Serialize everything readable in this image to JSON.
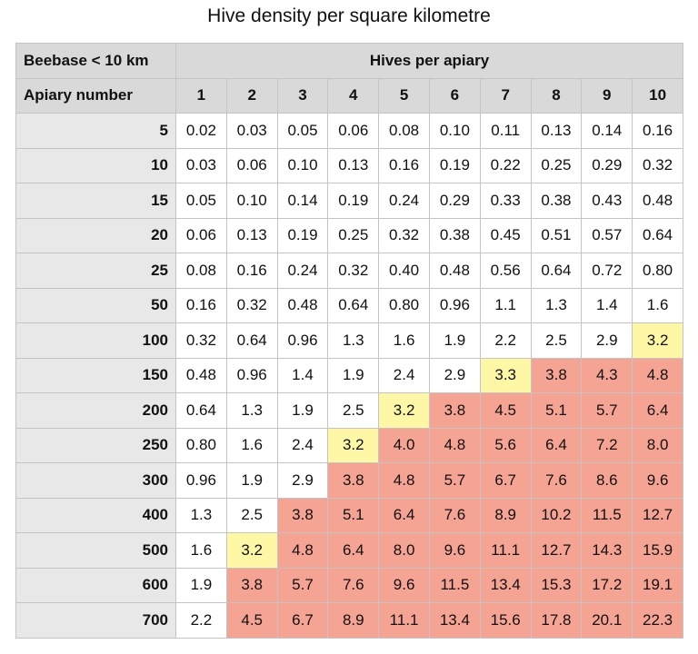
{
  "title": "Hive density per square kilometre",
  "table": {
    "corner_top": "Beebase < 10 km",
    "group_header": "Hives per apiary",
    "corner_bottom": "Apiary number",
    "columns": [
      "1",
      "2",
      "3",
      "4",
      "5",
      "6",
      "7",
      "8",
      "9",
      "10"
    ],
    "header_color": "#d9d9d9",
    "label_color": "#e8e8e8",
    "border_color": "#c4c4c4",
    "rows": [
      {
        "label": "5",
        "cells": [
          "0.02",
          "0.03",
          "0.05",
          "0.06",
          "0.08",
          "0.10",
          "0.11",
          "0.13",
          "0.14",
          "0.16"
        ],
        "fills": [
          "#ffffff",
          "#ffffff",
          "#ffffff",
          "#ffffff",
          "#ffffff",
          "#ffffff",
          "#ffffff",
          "#ffffff",
          "#ffffff",
          "#ffffff"
        ]
      },
      {
        "label": "10",
        "cells": [
          "0.03",
          "0.06",
          "0.10",
          "0.13",
          "0.16",
          "0.19",
          "0.22",
          "0.25",
          "0.29",
          "0.32"
        ],
        "fills": [
          "#ffffff",
          "#ffffff",
          "#ffffff",
          "#ffffff",
          "#ffffff",
          "#ffffff",
          "#ffffff",
          "#ffffff",
          "#ffffff",
          "#ffffff"
        ]
      },
      {
        "label": "15",
        "cells": [
          "0.05",
          "0.10",
          "0.14",
          "0.19",
          "0.24",
          "0.29",
          "0.33",
          "0.38",
          "0.43",
          "0.48"
        ],
        "fills": [
          "#ffffff",
          "#ffffff",
          "#ffffff",
          "#ffffff",
          "#ffffff",
          "#ffffff",
          "#ffffff",
          "#ffffff",
          "#ffffff",
          "#ffffff"
        ]
      },
      {
        "label": "20",
        "cells": [
          "0.06",
          "0.13",
          "0.19",
          "0.25",
          "0.32",
          "0.38",
          "0.45",
          "0.51",
          "0.57",
          "0.64"
        ],
        "fills": [
          "#ffffff",
          "#ffffff",
          "#ffffff",
          "#ffffff",
          "#ffffff",
          "#ffffff",
          "#ffffff",
          "#ffffff",
          "#ffffff",
          "#ffffff"
        ]
      },
      {
        "label": "25",
        "cells": [
          "0.08",
          "0.16",
          "0.24",
          "0.32",
          "0.40",
          "0.48",
          "0.56",
          "0.64",
          "0.72",
          "0.80"
        ],
        "fills": [
          "#ffffff",
          "#ffffff",
          "#ffffff",
          "#ffffff",
          "#ffffff",
          "#ffffff",
          "#ffffff",
          "#ffffff",
          "#ffffff",
          "#ffffff"
        ]
      },
      {
        "label": "50",
        "cells": [
          "0.16",
          "0.32",
          "0.48",
          "0.64",
          "0.80",
          "0.96",
          "1.1",
          "1.3",
          "1.4",
          "1.6"
        ],
        "fills": [
          "#ffffff",
          "#ffffff",
          "#ffffff",
          "#ffffff",
          "#ffffff",
          "#ffffff",
          "#ffffff",
          "#ffffff",
          "#ffffff",
          "#ffffff"
        ]
      },
      {
        "label": "100",
        "cells": [
          "0.32",
          "0.64",
          "0.96",
          "1.3",
          "1.6",
          "1.9",
          "2.2",
          "2.5",
          "2.9",
          "3.2"
        ],
        "fills": [
          "#ffffff",
          "#ffffff",
          "#ffffff",
          "#ffffff",
          "#ffffff",
          "#ffffff",
          "#ffffff",
          "#ffffff",
          "#ffffff",
          "#fdf7a6"
        ]
      },
      {
        "label": "150",
        "cells": [
          "0.48",
          "0.96",
          "1.4",
          "1.9",
          "2.4",
          "2.9",
          "3.3",
          "3.8",
          "4.3",
          "4.8"
        ],
        "fills": [
          "#ffffff",
          "#ffffff",
          "#ffffff",
          "#ffffff",
          "#ffffff",
          "#ffffff",
          "#fdf7a6",
          "#f5a393",
          "#f5a393",
          "#f5a393"
        ]
      },
      {
        "label": "200",
        "cells": [
          "0.64",
          "1.3",
          "1.9",
          "2.5",
          "3.2",
          "3.8",
          "4.5",
          "5.1",
          "5.7",
          "6.4"
        ],
        "fills": [
          "#ffffff",
          "#ffffff",
          "#ffffff",
          "#ffffff",
          "#fdf7a6",
          "#f5a393",
          "#f5a393",
          "#f5a393",
          "#f5a393",
          "#f5a393"
        ]
      },
      {
        "label": "250",
        "cells": [
          "0.80",
          "1.6",
          "2.4",
          "3.2",
          "4.0",
          "4.8",
          "5.6",
          "6.4",
          "7.2",
          "8.0"
        ],
        "fills": [
          "#ffffff",
          "#ffffff",
          "#ffffff",
          "#fdf7a6",
          "#f5a393",
          "#f5a393",
          "#f5a393",
          "#f5a393",
          "#f5a393",
          "#f5a393"
        ]
      },
      {
        "label": "300",
        "cells": [
          "0.96",
          "1.9",
          "2.9",
          "3.8",
          "4.8",
          "5.7",
          "6.7",
          "7.6",
          "8.6",
          "9.6"
        ],
        "fills": [
          "#ffffff",
          "#ffffff",
          "#ffffff",
          "#f5a393",
          "#f5a393",
          "#f5a393",
          "#f5a393",
          "#f5a393",
          "#f5a393",
          "#f5a393"
        ]
      },
      {
        "label": "400",
        "cells": [
          "1.3",
          "2.5",
          "3.8",
          "5.1",
          "6.4",
          "7.6",
          "8.9",
          "10.2",
          "11.5",
          "12.7"
        ],
        "fills": [
          "#ffffff",
          "#ffffff",
          "#f5a393",
          "#f5a393",
          "#f5a393",
          "#f5a393",
          "#f5a393",
          "#f5a393",
          "#f5a393",
          "#f5a393"
        ]
      },
      {
        "label": "500",
        "cells": [
          "1.6",
          "3.2",
          "4.8",
          "6.4",
          "8.0",
          "9.6",
          "11.1",
          "12.7",
          "14.3",
          "15.9"
        ],
        "fills": [
          "#ffffff",
          "#fdf7a6",
          "#f5a393",
          "#f5a393",
          "#f5a393",
          "#f5a393",
          "#f5a393",
          "#f5a393",
          "#f5a393",
          "#f5a393"
        ]
      },
      {
        "label": "600",
        "cells": [
          "1.9",
          "3.8",
          "5.7",
          "7.6",
          "9.6",
          "11.5",
          "13.4",
          "15.3",
          "17.2",
          "19.1"
        ],
        "fills": [
          "#ffffff",
          "#f5a393",
          "#f5a393",
          "#f5a393",
          "#f5a393",
          "#f5a393",
          "#f5a393",
          "#f5a393",
          "#f5a393",
          "#f5a393"
        ]
      },
      {
        "label": "700",
        "cells": [
          "2.2",
          "4.5",
          "6.7",
          "8.9",
          "11.1",
          "13.4",
          "15.6",
          "17.8",
          "20.1",
          "22.3"
        ],
        "fills": [
          "#ffffff",
          "#f5a393",
          "#f5a393",
          "#f5a393",
          "#f5a393",
          "#f5a393",
          "#f5a393",
          "#f5a393",
          "#f5a393",
          "#f5a393"
        ]
      }
    ]
  }
}
